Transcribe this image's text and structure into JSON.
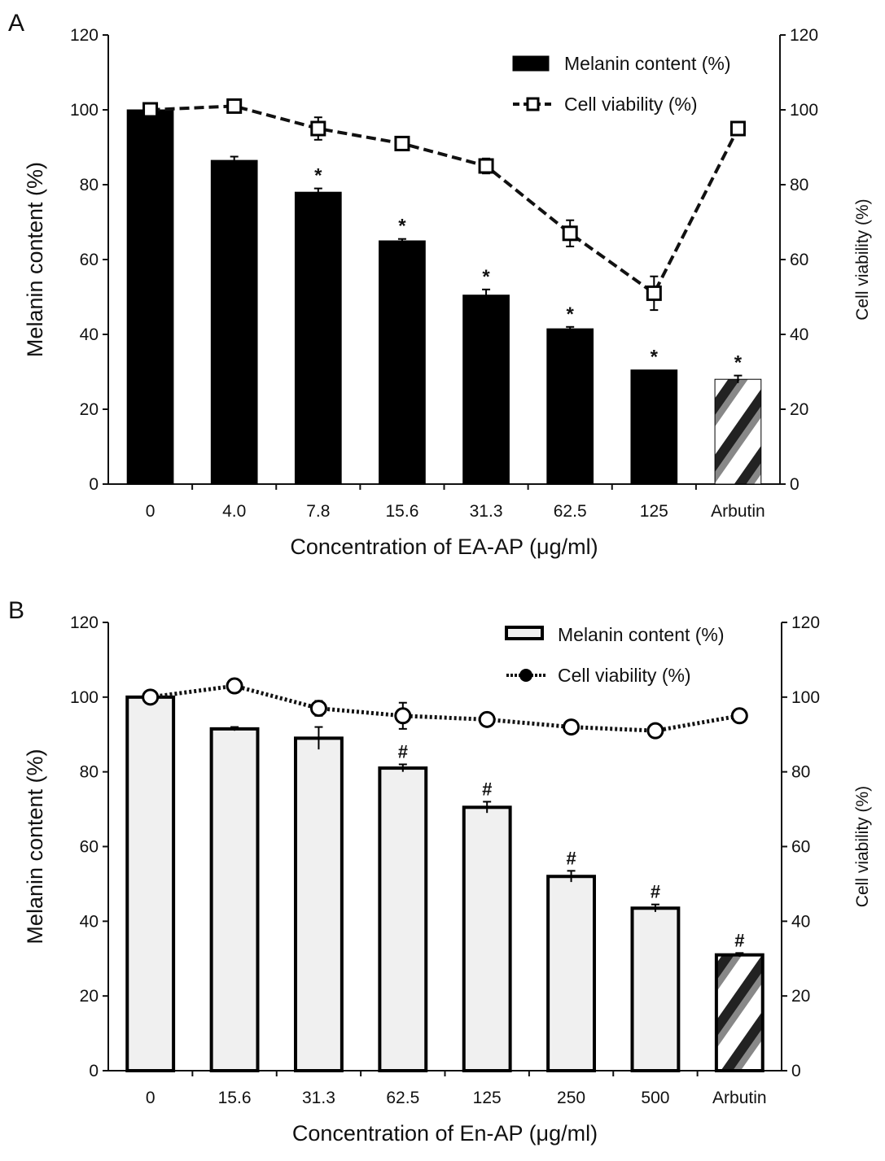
{
  "chart_data": [
    {
      "panel_label": "A",
      "type": "bar+line",
      "categories": [
        "0",
        "4.0",
        "7.8",
        "15.6",
        "31.3",
        "62.5",
        "125",
        "Arbutin"
      ],
      "xlabel": "Concentration of EA-AP (μg/ml)",
      "ylabel": "Melanin content (%)",
      "y2label": "Cell viability (%)",
      "ylim": [
        0,
        120
      ],
      "y2lim": [
        0,
        120
      ],
      "yticks": [
        0,
        20,
        40,
        60,
        80,
        100,
        120
      ],
      "legend_position": "top-right",
      "series": [
        {
          "name": "Melanin content (%)",
          "kind": "bar",
          "fill": "#000000",
          "values": [
            100,
            86.5,
            78,
            65,
            50.5,
            41.5,
            30.5,
            28
          ],
          "errors": [
            0,
            1,
            1,
            0.5,
            1.5,
            0.5,
            0,
            1
          ],
          "marks": [
            "",
            "",
            "*",
            "*",
            "*",
            "*",
            "*",
            "*"
          ]
        },
        {
          "name": "Cell viability (%)",
          "kind": "line",
          "style": "dashed",
          "marker": "square",
          "axis": "right",
          "values": [
            100,
            101,
            95,
            91,
            85,
            67,
            51,
            95
          ],
          "errors": [
            0.5,
            1.5,
            3,
            1,
            2,
            3.5,
            4.5,
            1
          ]
        }
      ]
    },
    {
      "panel_label": "B",
      "type": "bar+line",
      "categories": [
        "0",
        "15.6",
        "31.3",
        "62.5",
        "125",
        "250",
        "500",
        "Arbutin"
      ],
      "xlabel": "Concentration of En-AP (μg/ml)",
      "ylabel": "Melanin content (%)",
      "y2label": "Cell viability (%)",
      "ylim": [
        0,
        120
      ],
      "y2lim": [
        0,
        120
      ],
      "yticks": [
        0,
        20,
        40,
        60,
        80,
        100,
        120
      ],
      "legend_position": "top-right",
      "series": [
        {
          "name": "Melanin content (%)",
          "kind": "bar",
          "fill": "#f0f0f0",
          "values": [
            100,
            91.5,
            89,
            81,
            70.5,
            52,
            43.5,
            31
          ],
          "errors": [
            0,
            0.5,
            3,
            1,
            1.5,
            1.5,
            1,
            0.5
          ],
          "marks": [
            "",
            "",
            "",
            "#",
            "#",
            "#",
            "#",
            "#"
          ]
        },
        {
          "name": "Cell viability (%)",
          "kind": "line",
          "style": "dotted",
          "marker": "circle",
          "axis": "right",
          "values": [
            100,
            103,
            97,
            95,
            94,
            92,
            91,
            95
          ],
          "errors": [
            0.5,
            1,
            2,
            3.5,
            1,
            1.5,
            1,
            1
          ]
        }
      ]
    }
  ]
}
